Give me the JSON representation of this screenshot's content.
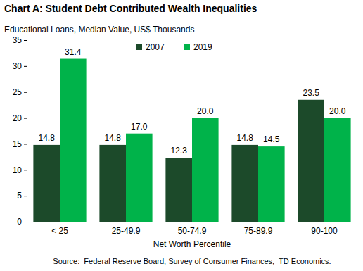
{
  "chart_data": {
    "type": "bar",
    "title": "Chart A: Student Debt Contributed Wealth Inequalities",
    "subtitle": "Educational Loans, Median Value, US$ Thousands",
    "x_label": "Net Worth Percentile",
    "source": "Source:  Federal Reserve Board, Survey of Consumer Finances,  TD Economics.",
    "categories": [
      "< 25",
      "25-49.9",
      "50-74.9",
      "75-89.9",
      "90-100"
    ],
    "series": [
      {
        "name": "2007",
        "color": "#1c4a2a",
        "values": [
          14.8,
          14.8,
          12.3,
          14.8,
          23.5
        ]
      },
      {
        "name": "2019",
        "color": "#00b34a",
        "values": [
          31.4,
          17.0,
          20.0,
          14.5,
          20.0
        ],
        "value_labels": [
          "31.4",
          "17.0",
          "20.0",
          "14.5",
          "20.0"
        ]
      }
    ],
    "ylim": [
      0,
      35
    ],
    "yticks": [
      0,
      5,
      10,
      15,
      20,
      25,
      30,
      35
    ],
    "grid": false,
    "legend": "top",
    "data_labels": true
  }
}
